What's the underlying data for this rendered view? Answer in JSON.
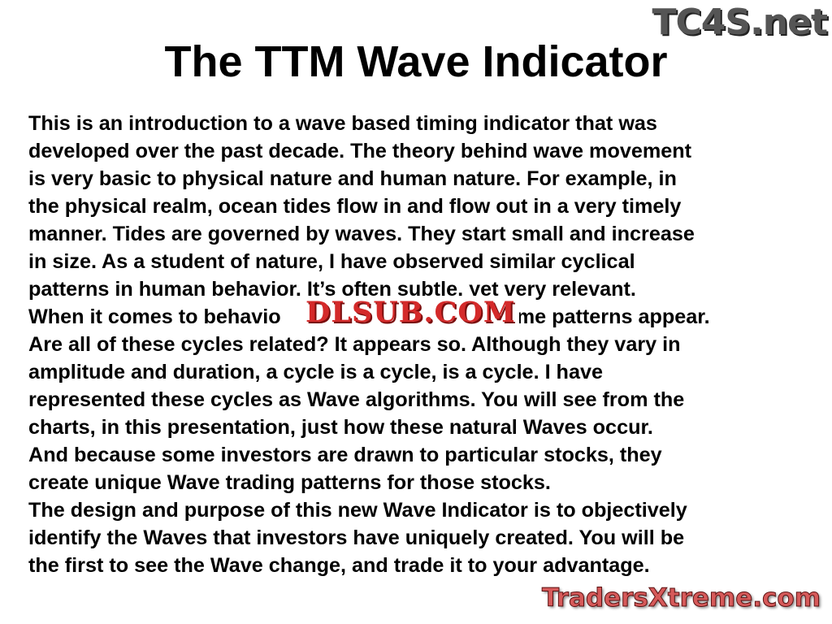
{
  "title": "The TTM Wave Indicator",
  "lines": [
    "This is an introduction to a wave based timing indicator that was",
    "developed over the past decade. The theory behind wave movement",
    "is very basic to physical nature and human nature. For example, in",
    "the physical realm, ocean tides flow in and flow out in a very timely",
    "manner. Tides are governed by waves. They start small and increase",
    "in size. As a student of nature, I have observed similar cyclical",
    "patterns in human behavior. It’s often subtle, yet very relevant.",
    "When it comes to behavio",
    "me patterns appear.",
    "Are all of these cycles related? It appears so. Although they vary in",
    "amplitude and duration, a cycle is a cycle, is a cycle. I have",
    "represented these cycles as Wave algorithms. You will see from the",
    "charts, in this presentation, just how these natural Waves occur.",
    "And because some investors are drawn to particular stocks, they",
    "create unique Wave trading patterns for those stocks.",
    "The design and purpose of this new Wave Indicator is to objectively",
    "identify the Waves that investors have uniquely created. You will be",
    "the first to see the Wave change, and trade it to your advantage."
  ],
  "watermarks": {
    "top_right": "TC4S.net",
    "middle": "DLSUB.COM",
    "bottom_right": "TradersXtreme.com"
  }
}
